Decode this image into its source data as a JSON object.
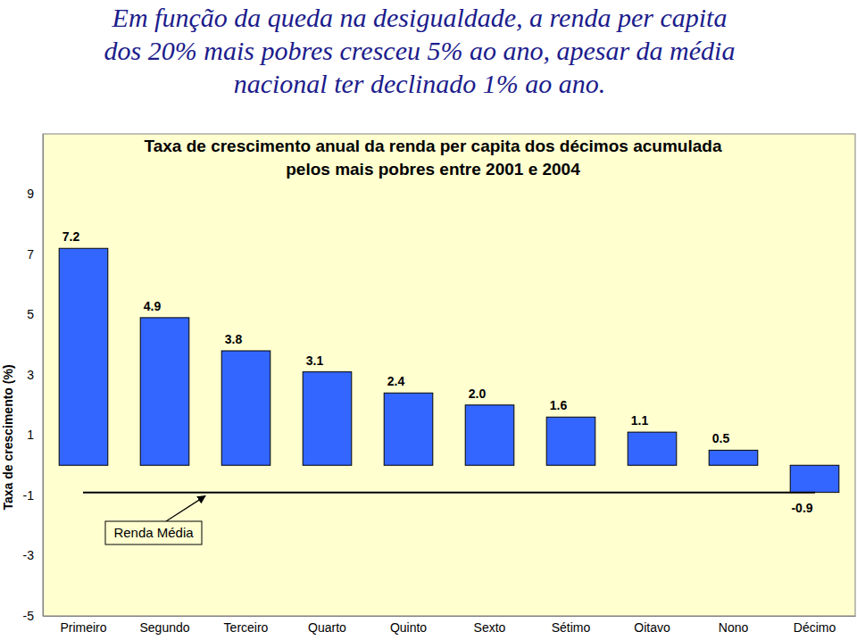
{
  "headline": [
    "Em função da queda na desigualdade, a renda per capita",
    "dos 20% mais pobres cresceu 5% ao ano, apesar da média",
    "nacional ter declinado 1% ao ano."
  ],
  "chart_data": {
    "type": "bar",
    "title": [
      "Taxa de crescimento anual da renda per capita dos décimos acumulada",
      "pelos mais pobres entre 2001 e 2004"
    ],
    "y_label": "Taxa de crescimento (%)",
    "categories": [
      "Primeiro",
      "Segundo",
      "Terceiro",
      "Quarto",
      "Quinto",
      "Sexto",
      "Sétimo",
      "Oitavo",
      "Nono",
      "Décimo"
    ],
    "values": [
      7.2,
      4.9,
      3.8,
      3.1,
      2.4,
      2.0,
      1.6,
      1.1,
      0.5,
      -0.9
    ],
    "value_labels": [
      "7.2",
      "4.9",
      "3.8",
      "3.1",
      "2.4",
      "2.0",
      "1.6",
      "1.1",
      "0.5",
      "-0.9"
    ],
    "color": "#3366ff",
    "ylim": [
      -5,
      11
    ],
    "yticks": [
      -5,
      -3,
      -1,
      1,
      3,
      5,
      7,
      9
    ],
    "grid": false,
    "data_labels": true,
    "reference_line": {
      "label": "Renda Média",
      "value": -0.9
    }
  }
}
